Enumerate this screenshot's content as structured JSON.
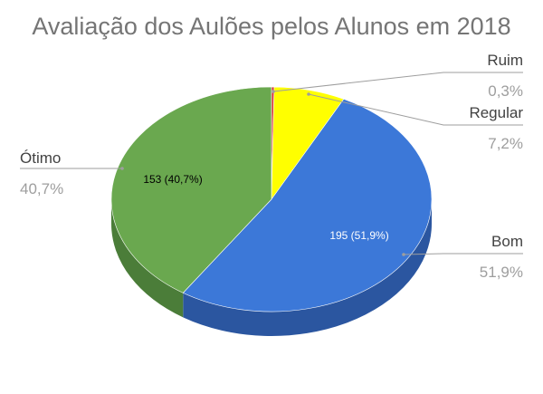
{
  "chart_data": {
    "type": "pie",
    "title": "Avaliação dos Aulões pelos Alunos em 2018",
    "slices": [
      {
        "name": "Ruim",
        "value": 1,
        "percent": "0,3%",
        "label": "",
        "color": "#d32f2f",
        "side": "#a02424"
      },
      {
        "name": "Regular",
        "value": 27,
        "percent": "7,2%",
        "label": "",
        "color": "#ffff00",
        "side": "#c7c700"
      },
      {
        "name": "Bom",
        "value": 195,
        "percent": "51,9%",
        "label": "195 (51,9%)",
        "color": "#3c78d8",
        "side": "#2b56a0"
      },
      {
        "name": "Ótimo",
        "value": 153,
        "percent": "40,7%",
        "label": "153 (40,7%)",
        "color": "#6aa84f",
        "side": "#4b7d39"
      }
    ],
    "legend": "labels-outside",
    "start_angle_deg": 0,
    "direction": "clockwise"
  }
}
